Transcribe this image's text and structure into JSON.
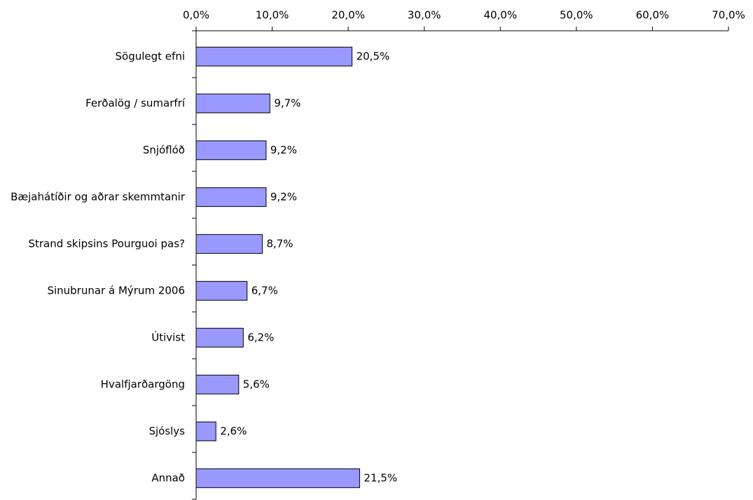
{
  "chart_data": {
    "type": "bar",
    "orientation": "horizontal",
    "categories": [
      "Sögulegt efni",
      "Ferðalög / sumarfrí",
      "Snjóflóð",
      "Bæjahátíðir og aðrar skemmtanir",
      "Strand skipsins Pourguoi pas?",
      "Sinubrunar á Mýrum 2006",
      "Útivist",
      "Hvalfjarðargöng",
      "Sjóslys",
      "Annað"
    ],
    "values": [
      20.5,
      9.7,
      9.2,
      9.2,
      8.7,
      6.7,
      6.2,
      5.6,
      2.6,
      21.5
    ],
    "value_labels": [
      "20,5%",
      "9,7%",
      "9,2%",
      "9,2%",
      "8,7%",
      "6,7%",
      "6,2%",
      "5,6%",
      "2,6%",
      "21,5%"
    ],
    "color": "#9999ff",
    "xlim": [
      0,
      70
    ],
    "xticks": [
      {
        "value": 0,
        "label": "0,0%"
      },
      {
        "value": 10,
        "label": "10,0%"
      },
      {
        "value": 20,
        "label": "20,0%"
      },
      {
        "value": 30,
        "label": "30,0%"
      },
      {
        "value": 40,
        "label": "40,0%"
      },
      {
        "value": 50,
        "label": "50,0%"
      },
      {
        "value": 60,
        "label": "60,0%"
      },
      {
        "value": 70,
        "label": "70,0%"
      }
    ],
    "grid": false
  }
}
